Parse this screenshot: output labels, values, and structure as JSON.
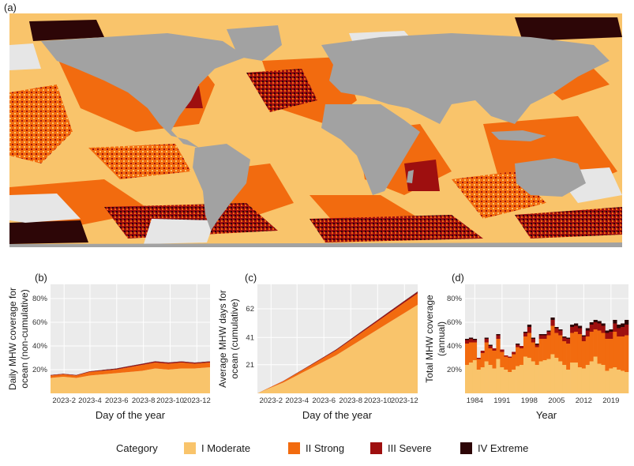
{
  "colors": {
    "moderate": "#F9C46B",
    "strong": "#F26B0F",
    "severe": "#9E0F0F",
    "extreme": "#2D0607",
    "land": "#A2A2A2",
    "no_mhw": "#E6E6E6",
    "panel_bg": "#EBEBEB"
  },
  "panels": {
    "a": "(a)",
    "b": "(b)",
    "c": "(c)",
    "d": "(d)"
  },
  "legend": {
    "title": "Category",
    "items": [
      {
        "label": "I Moderate",
        "color": "#F9C46B"
      },
      {
        "label": "II Strong",
        "color": "#F26B0F"
      },
      {
        "label": "III Severe",
        "color": "#9E0F0F"
      },
      {
        "label": "IV Extreme",
        "color": "#2D0607"
      }
    ]
  },
  "chart_data": [
    {
      "panel": "(a)",
      "type": "heatmap",
      "description_visible": "global map of MHW category",
      "categories": [
        "I Moderate",
        "II Strong",
        "III Severe",
        "IV Extreme"
      ]
    },
    {
      "panel": "(b)",
      "type": "area",
      "xlabel": "Day of the year",
      "ylabel": "Daily MHW coverage for ocean (non-cumulative)",
      "xticks": [
        "2023-2",
        "2023-4",
        "2023-6",
        "2023-8",
        "2023-10",
        "2023-12"
      ],
      "yticks": [
        "20%",
        "40%",
        "60%",
        "80%"
      ],
      "ylim": [
        0,
        92
      ],
      "xlim": [
        1,
        365
      ],
      "x": [
        1,
        30,
        60,
        90,
        120,
        150,
        180,
        210,
        240,
        270,
        300,
        330,
        365
      ],
      "series": [
        {
          "name": "I Moderate",
          "values": [
            13,
            14,
            13,
            15,
            16,
            17,
            18,
            19,
            21,
            20,
            21,
            21,
            22
          ]
        },
        {
          "name": "II Strong",
          "values": [
            2,
            2,
            2,
            3,
            3,
            3,
            4,
            5,
            5,
            5,
            5,
            4,
            4
          ]
        },
        {
          "name": "III Severe",
          "values": [
            0.4,
            0.4,
            0.4,
            0.5,
            0.6,
            0.7,
            0.8,
            0.8,
            0.9,
            0.9,
            0.8,
            0.8,
            0.8
          ]
        },
        {
          "name": "IV Extreme",
          "values": [
            0.1,
            0.1,
            0.1,
            0.1,
            0.2,
            0.2,
            0.2,
            0.2,
            0.2,
            0.2,
            0.2,
            0.2,
            0.2
          ]
        }
      ]
    },
    {
      "panel": "(c)",
      "type": "area",
      "xlabel": "Day of the year",
      "ylabel": "Average MHW days for ocean (cumulative)",
      "xticks": [
        "2023-2",
        "2023-4",
        "2023-6",
        "2023-8",
        "2023-10",
        "2023-12"
      ],
      "yticks": [
        "21",
        "41",
        "62"
      ],
      "ylim": [
        0,
        80
      ],
      "xlim": [
        1,
        365
      ],
      "x": [
        1,
        30,
        60,
        90,
        120,
        150,
        180,
        210,
        240,
        270,
        300,
        330,
        365
      ],
      "series": [
        {
          "name": "I Moderate",
          "values": [
            0,
            4,
            8,
            13,
            18,
            23,
            28,
            34,
            40,
            46,
            52,
            58,
            65
          ]
        },
        {
          "name": "II Strong",
          "values": [
            0,
            0.4,
            0.9,
            1.5,
            2.1,
            2.8,
            3.5,
            4.3,
            5.1,
            5.9,
            6.7,
            7.5,
            8.3
          ]
        },
        {
          "name": "III Severe",
          "values": [
            0,
            0.1,
            0.2,
            0.3,
            0.4,
            0.5,
            0.6,
            0.7,
            0.8,
            0.9,
            1.0,
            1.1,
            1.2
          ]
        },
        {
          "name": "IV Extreme",
          "values": [
            0,
            0.02,
            0.04,
            0.06,
            0.08,
            0.1,
            0.12,
            0.14,
            0.16,
            0.18,
            0.2,
            0.22,
            0.25
          ]
        }
      ]
    },
    {
      "panel": "(d)",
      "type": "bar",
      "xlabel": "Year",
      "ylabel": "Total MHW coverage (annual)",
      "xticks": [
        "1984",
        "1991",
        "1998",
        "2005",
        "2012",
        "2019"
      ],
      "yticks": [
        "20%",
        "40%",
        "60%",
        "80%"
      ],
      "ylim": [
        0,
        92
      ],
      "categories": [
        1982,
        1983,
        1984,
        1985,
        1986,
        1987,
        1988,
        1989,
        1990,
        1991,
        1992,
        1993,
        1994,
        1995,
        1996,
        1997,
        1998,
        1999,
        2000,
        2001,
        2002,
        2003,
        2004,
        2005,
        2006,
        2007,
        2008,
        2009,
        2010,
        2011,
        2012,
        2013,
        2014,
        2015,
        2016,
        2017,
        2018,
        2019,
        2020,
        2021,
        2022,
        2023
      ],
      "series": [
        {
          "name": "I Moderate",
          "values": [
            24,
            26,
            28,
            20,
            22,
            27,
            24,
            21,
            29,
            22,
            20,
            18,
            20,
            23,
            24,
            31,
            30,
            27,
            24,
            27,
            28,
            29,
            33,
            30,
            27,
            24,
            20,
            26,
            26,
            22,
            21,
            24,
            27,
            31,
            25,
            24,
            19,
            21,
            22,
            20,
            19,
            18
          ]
        },
        {
          "name": "II Strong",
          "values": [
            18,
            17,
            15,
            9,
            12,
            16,
            14,
            15,
            17,
            13,
            11,
            12,
            13,
            16,
            14,
            17,
            21,
            16,
            15,
            19,
            18,
            20,
            24,
            21,
            22,
            20,
            22,
            25,
            26,
            28,
            23,
            24,
            25,
            23,
            28,
            27,
            27,
            25,
            30,
            28,
            29,
            31
          ]
        },
        {
          "name": "III Severe",
          "values": [
            3,
            3,
            2,
            1,
            2,
            3,
            2,
            2,
            3,
            2,
            1,
            1,
            2,
            2,
            2,
            3,
            5,
            3,
            2,
            3,
            3,
            3,
            5,
            4,
            4,
            3,
            4,
            5,
            5,
            5,
            4,
            5,
            6,
            6,
            6,
            6,
            5,
            6,
            7,
            7,
            8,
            9
          ]
        },
        {
          "name": "IV Extreme",
          "values": [
            1,
            1,
            1,
            0,
            0,
            1,
            1,
            0,
            1,
            0,
            0,
            0,
            0,
            1,
            0,
            1,
            2,
            1,
            1,
            1,
            1,
            1,
            2,
            1,
            1,
            1,
            1,
            2,
            2,
            2,
            1,
            2,
            2,
            2,
            2,
            2,
            2,
            2,
            3,
            3,
            3,
            4
          ]
        }
      ]
    }
  ],
  "labels": {
    "b_ylabel_1": "Daily MHW coverage for",
    "b_ylabel_2": "ocean (non-cumulative)",
    "c_ylabel_1": "Average MHW days for",
    "c_ylabel_2": "ocean (cumulative)",
    "d_ylabel_1": "Total MHW coverage",
    "d_ylabel_2": "(annual)",
    "b_xlabel": "Day of the year",
    "c_xlabel": "Day of the year",
    "d_xlabel": "Year"
  }
}
